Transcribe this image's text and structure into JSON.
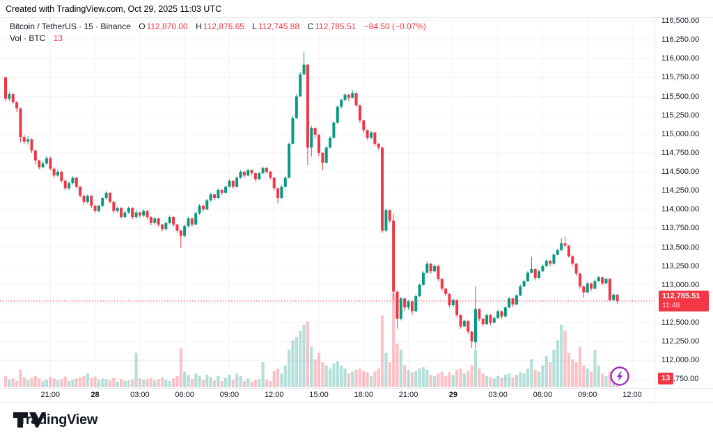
{
  "header": {
    "created_with": "Created with TradingView.com, Oct 29, 2025 11:03 UTC"
  },
  "legend": {
    "symbol": "Bitcoin / TetherUS · 15 · Binance",
    "ohlc": [
      {
        "label": "O",
        "value": "112,870.00"
      },
      {
        "label": "H",
        "value": "112,876.65"
      },
      {
        "label": "L",
        "value": "112,745.88"
      },
      {
        "label": "C",
        "value": "112,785.51"
      }
    ],
    "change": "−84.50 (−0.07%)",
    "vol_label": "Vol · BTC",
    "vol_value": "13"
  },
  "price_badge": {
    "price": "112,785.51",
    "countdown": "11:48"
  },
  "volume_badge": {
    "value": "13"
  },
  "footer": {
    "brand": "TradingView"
  },
  "colors": {
    "up": "#089981",
    "down": "#f23645",
    "vol_up": "rgba(8,153,129,0.30)",
    "vol_down": "rgba(242,54,69,0.30)",
    "accent": "#f23645",
    "grid": "#f0f3fa",
    "border": "#e0e3eb",
    "text": "#131722",
    "flash_purple": "#a22dc6"
  },
  "price_axis": {
    "ticks": [
      {
        "v": 116500,
        "t": "116,500.00"
      },
      {
        "v": 116250,
        "t": "116,250.00"
      },
      {
        "v": 116000,
        "t": "116,000.00"
      },
      {
        "v": 115750,
        "t": "115,750.00"
      },
      {
        "v": 115500,
        "t": "115,500.00"
      },
      {
        "v": 115250,
        "t": "115,250.00"
      },
      {
        "v": 115000,
        "t": "115,000.00"
      },
      {
        "v": 114750,
        "t": "114,750.00"
      },
      {
        "v": 114500,
        "t": "114,500.00"
      },
      {
        "v": 114250,
        "t": "114,250.00"
      },
      {
        "v": 114000,
        "t": "114,000.00"
      },
      {
        "v": 113750,
        "t": "113,750.00"
      },
      {
        "v": 113500,
        "t": "113,500.00"
      },
      {
        "v": 113250,
        "t": "113,250.00"
      },
      {
        "v": 113000,
        "t": "113,000.00"
      },
      {
        "v": 112500,
        "t": "112,500.00"
      },
      {
        "v": 112250,
        "t": "112,250.00"
      },
      {
        "v": 112000,
        "t": "112,000.00"
      },
      {
        "v": 111750,
        "t": "111,750.00"
      }
    ],
    "grid_extra": [
      112750
    ]
  },
  "time_axis": {
    "labels": [
      {
        "index": 12,
        "text": "21:00",
        "bold": false
      },
      {
        "index": 24,
        "text": "28",
        "bold": true
      },
      {
        "index": 36,
        "text": "03:00",
        "bold": false
      },
      {
        "index": 48,
        "text": "06:00",
        "bold": false
      },
      {
        "index": 60,
        "text": "09:00",
        "bold": false
      },
      {
        "index": 72,
        "text": "12:00",
        "bold": false
      },
      {
        "index": 84,
        "text": "15:00",
        "bold": false
      },
      {
        "index": 96,
        "text": "18:00",
        "bold": false
      },
      {
        "index": 108,
        "text": "21:00",
        "bold": false
      },
      {
        "index": 120,
        "text": "29",
        "bold": true
      },
      {
        "index": 132,
        "text": "03:00",
        "bold": false
      },
      {
        "index": 144,
        "text": "06:00",
        "bold": false
      },
      {
        "index": 156,
        "text": "09:00",
        "bold": false
      },
      {
        "index": 168,
        "text": "12:00",
        "bold": false
      }
    ]
  },
  "chart_data": {
    "type": "candlestick+volume",
    "symbol": "Bitcoin / TetherUS",
    "interval_minutes": 15,
    "exchange": "Binance",
    "start_time": "2025-10-27 18:00 UTC",
    "end_time": "2025-10-29 11:00 UTC",
    "last_price": 112785.51,
    "last_bar_countdown": "11:48",
    "last_bar_volume_btc": 13,
    "y_axis_range": [
      111700,
      116550
    ],
    "grid": true,
    "candles_ohlcv": [
      [
        115750,
        115760,
        115430,
        115470,
        18
      ],
      [
        115470,
        115560,
        115440,
        115530,
        12
      ],
      [
        115530,
        115545,
        115400,
        115420,
        14
      ],
      [
        115420,
        115440,
        115290,
        115340,
        10
      ],
      [
        115340,
        115350,
        114890,
        114960,
        28
      ],
      [
        114960,
        114990,
        114870,
        114900,
        16
      ],
      [
        114900,
        114970,
        114860,
        114930,
        12
      ],
      [
        114930,
        114940,
        114750,
        114780,
        15
      ],
      [
        114780,
        114800,
        114600,
        114650,
        18
      ],
      [
        114650,
        114660,
        114530,
        114560,
        14
      ],
      [
        114560,
        114640,
        114540,
        114610,
        10
      ],
      [
        114610,
        114710,
        114590,
        114680,
        12
      ],
      [
        114680,
        114700,
        114520,
        114540,
        16
      ],
      [
        114540,
        114560,
        114420,
        114450,
        14
      ],
      [
        114450,
        114530,
        114430,
        114500,
        11
      ],
      [
        114500,
        114510,
        114360,
        114380,
        13
      ],
      [
        114380,
        114400,
        114250,
        114280,
        17
      ],
      [
        114280,
        114370,
        114260,
        114350,
        10
      ],
      [
        114350,
        114440,
        114330,
        114420,
        12
      ],
      [
        114420,
        114430,
        114280,
        114300,
        14
      ],
      [
        114300,
        114310,
        114160,
        114180,
        16
      ],
      [
        114180,
        114200,
        114060,
        114100,
        18
      ],
      [
        114100,
        114200,
        114080,
        114180,
        22
      ],
      [
        114180,
        114190,
        114020,
        114050,
        15
      ],
      [
        114050,
        114070,
        113950,
        113980,
        17
      ],
      [
        113980,
        114060,
        113960,
        114050,
        12
      ],
      [
        114050,
        114160,
        114030,
        114150,
        14
      ],
      [
        114150,
        114240,
        114130,
        114220,
        13
      ],
      [
        114220,
        114230,
        114080,
        114100,
        11
      ],
      [
        114100,
        114110,
        113950,
        113980,
        15
      ],
      [
        113980,
        114040,
        113960,
        114020,
        9
      ],
      [
        114020,
        114030,
        113880,
        113900,
        13
      ],
      [
        113900,
        113980,
        113880,
        113960,
        10
      ],
      [
        113960,
        114040,
        113940,
        114020,
        11
      ],
      [
        114020,
        114030,
        113870,
        113900,
        12
      ],
      [
        113900,
        113990,
        113880,
        113960,
        55
      ],
      [
        113960,
        113970,
        113890,
        113920,
        14
      ],
      [
        113920,
        114000,
        113900,
        113980,
        12
      ],
      [
        113980,
        113990,
        113870,
        113900,
        13
      ],
      [
        113900,
        113910,
        113790,
        113820,
        15
      ],
      [
        113820,
        113900,
        113800,
        113880,
        11
      ],
      [
        113880,
        113890,
        113770,
        113800,
        13
      ],
      [
        113800,
        113810,
        113710,
        113740,
        16
      ],
      [
        113740,
        113840,
        113720,
        113820,
        12
      ],
      [
        113820,
        113920,
        113800,
        113900,
        10
      ],
      [
        113900,
        113910,
        113770,
        113800,
        14
      ],
      [
        113800,
        113810,
        113690,
        113720,
        18
      ],
      [
        113720,
        113730,
        113490,
        113650,
        62
      ],
      [
        113650,
        113800,
        113630,
        113780,
        25
      ],
      [
        113780,
        113900,
        113760,
        113880,
        20
      ],
      [
        113880,
        113890,
        113770,
        113800,
        13
      ],
      [
        113800,
        113970,
        113790,
        113950,
        22
      ],
      [
        113950,
        114070,
        113930,
        114050,
        18
      ],
      [
        114050,
        114060,
        113970,
        114000,
        12
      ],
      [
        114000,
        114140,
        113990,
        114120,
        20
      ],
      [
        114120,
        114220,
        114100,
        114200,
        16
      ],
      [
        114200,
        114210,
        114120,
        114150,
        11
      ],
      [
        114150,
        114280,
        114140,
        114260,
        18
      ],
      [
        114260,
        114270,
        114190,
        114220,
        10
      ],
      [
        114220,
        114320,
        114210,
        114300,
        15
      ],
      [
        114300,
        114400,
        114290,
        114380,
        20
      ],
      [
        114380,
        114390,
        114270,
        114300,
        12
      ],
      [
        114300,
        114440,
        114290,
        114420,
        22
      ],
      [
        114420,
        114520,
        114410,
        114500,
        18
      ],
      [
        114500,
        114510,
        114420,
        114450,
        10
      ],
      [
        114450,
        114540,
        114440,
        114520,
        14
      ],
      [
        114520,
        114530,
        114450,
        114480,
        9
      ],
      [
        114480,
        114490,
        114370,
        114400,
        12
      ],
      [
        114400,
        114500,
        114390,
        114480,
        13
      ],
      [
        114480,
        114570,
        114470,
        114550,
        40
      ],
      [
        114550,
        114560,
        114470,
        114500,
        12
      ],
      [
        114500,
        114510,
        114400,
        114420,
        10
      ],
      [
        114420,
        114430,
        114250,
        114280,
        26
      ],
      [
        114280,
        114290,
        114080,
        114150,
        30
      ],
      [
        114150,
        114320,
        114140,
        114300,
        22
      ],
      [
        114300,
        114440,
        114290,
        114420,
        35
      ],
      [
        114420,
        114890,
        114410,
        114870,
        60
      ],
      [
        114870,
        115240,
        114860,
        115210,
        75
      ],
      [
        115210,
        115530,
        115200,
        115500,
        80
      ],
      [
        115500,
        115820,
        115490,
        115790,
        90
      ],
      [
        115790,
        116090,
        115780,
        115920,
        100
      ],
      [
        115920,
        115930,
        114590,
        114820,
        105
      ],
      [
        114820,
        115110,
        114700,
        115080,
        65
      ],
      [
        115080,
        115090,
        114940,
        114990,
        45
      ],
      [
        114990,
        115000,
        114700,
        114750,
        55
      ],
      [
        114750,
        114760,
        114520,
        114620,
        40
      ],
      [
        114620,
        114840,
        114610,
        114820,
        35
      ],
      [
        114820,
        114970,
        114810,
        114950,
        30
      ],
      [
        114950,
        115170,
        114940,
        115150,
        38
      ],
      [
        115150,
        115380,
        115140,
        115360,
        42
      ],
      [
        115360,
        115470,
        115340,
        115450,
        35
      ],
      [
        115450,
        115540,
        115430,
        115520,
        30
      ],
      [
        115520,
        115530,
        115440,
        115480,
        22
      ],
      [
        115480,
        115580,
        115470,
        115540,
        25
      ],
      [
        115540,
        115550,
        115360,
        115380,
        28
      ],
      [
        115380,
        115390,
        115150,
        115180,
        30
      ],
      [
        115180,
        115190,
        115020,
        115050,
        26
      ],
      [
        115050,
        115060,
        114920,
        114950,
        24
      ],
      [
        114950,
        115040,
        114930,
        115020,
        18
      ],
      [
        115020,
        115030,
        114840,
        114870,
        25
      ],
      [
        114870,
        114880,
        114790,
        114820,
        30
      ],
      [
        114820,
        114830,
        113690,
        113720,
        115
      ],
      [
        113720,
        114010,
        113700,
        113990,
        55
      ],
      [
        113990,
        114000,
        113820,
        113850,
        40
      ],
      [
        113850,
        113940,
        112800,
        112910,
        150
      ],
      [
        112910,
        112920,
        112420,
        112550,
        70
      ],
      [
        112550,
        112840,
        112530,
        112820,
        60
      ],
      [
        112820,
        112830,
        112650,
        112700,
        35
      ],
      [
        112700,
        112800,
        112670,
        112780,
        28
      ],
      [
        112780,
        112790,
        112600,
        112650,
        24
      ],
      [
        112650,
        112870,
        112640,
        112850,
        26
      ],
      [
        112850,
        113020,
        112840,
        113000,
        30
      ],
      [
        113000,
        113180,
        112990,
        113160,
        32
      ],
      [
        113160,
        113310,
        113150,
        113280,
        28
      ],
      [
        113280,
        113290,
        113150,
        113180,
        20
      ],
      [
        113180,
        113270,
        113170,
        113250,
        18
      ],
      [
        113250,
        113260,
        113050,
        113080,
        22
      ],
      [
        113080,
        113090,
        112920,
        112950,
        25
      ],
      [
        112950,
        112960,
        112850,
        112880,
        18
      ],
      [
        112880,
        112890,
        112700,
        112730,
        24
      ],
      [
        112730,
        112820,
        112710,
        112800,
        20
      ],
      [
        112800,
        112810,
        112570,
        112600,
        28
      ],
      [
        112600,
        112610,
        112420,
        112450,
        30
      ],
      [
        112450,
        112540,
        112440,
        112520,
        22
      ],
      [
        112520,
        112530,
        112350,
        112380,
        26
      ],
      [
        112380,
        112390,
        112160,
        112250,
        35
      ],
      [
        112240,
        112980,
        112150,
        112680,
        60
      ],
      [
        112680,
        112690,
        112520,
        112550,
        30
      ],
      [
        112550,
        112560,
        112450,
        112480,
        22
      ],
      [
        112480,
        112620,
        112470,
        112600,
        18
      ],
      [
        112600,
        112610,
        112470,
        112500,
        16
      ],
      [
        112500,
        112580,
        112490,
        112560,
        14
      ],
      [
        112560,
        112670,
        112550,
        112650,
        18
      ],
      [
        112650,
        112660,
        112550,
        112580,
        15
      ],
      [
        112580,
        112720,
        112570,
        112700,
        20
      ],
      [
        112700,
        112840,
        112690,
        112820,
        22
      ],
      [
        112820,
        112830,
        112710,
        112740,
        16
      ],
      [
        112740,
        112880,
        112730,
        112860,
        20
      ],
      [
        112860,
        113000,
        112850,
        112980,
        24
      ],
      [
        112980,
        113070,
        112970,
        113050,
        22
      ],
      [
        113050,
        113180,
        113040,
        113160,
        30
      ],
      [
        113160,
        113370,
        113150,
        113210,
        45
      ],
      [
        113210,
        113220,
        113060,
        113090,
        28
      ],
      [
        113090,
        113200,
        113080,
        113180,
        25
      ],
      [
        113180,
        113270,
        113170,
        113250,
        35
      ],
      [
        113250,
        113340,
        113240,
        113320,
        50
      ],
      [
        113320,
        113330,
        113250,
        113280,
        40
      ],
      [
        113280,
        113420,
        113270,
        113400,
        60
      ],
      [
        113400,
        113480,
        113390,
        113460,
        75
      ],
      [
        113460,
        113620,
        113450,
        113550,
        100
      ],
      [
        113550,
        113640,
        113500,
        113520,
        90
      ],
      [
        113520,
        113530,
        113360,
        113380,
        55
      ],
      [
        113380,
        113390,
        113250,
        113280,
        45
      ],
      [
        113280,
        113290,
        113120,
        113150,
        40
      ],
      [
        113150,
        113160,
        112950,
        112980,
        65
      ],
      [
        112980,
        112990,
        112830,
        112900,
        35
      ],
      [
        112900,
        113040,
        112890,
        113020,
        30
      ],
      [
        113020,
        113030,
        112920,
        112950,
        25
      ],
      [
        112950,
        113070,
        112940,
        113050,
        60
      ],
      [
        113050,
        113120,
        113040,
        113100,
        35
      ],
      [
        113100,
        113110,
        113000,
        113020,
        22
      ],
      [
        113020,
        113100,
        113010,
        113080,
        18
      ],
      [
        113080,
        113090,
        112780,
        112800,
        25
      ],
      [
        112800,
        112890,
        112790,
        112870,
        20
      ],
      [
        112870,
        112876.65,
        112745.88,
        112785.51,
        13
      ]
    ]
  }
}
